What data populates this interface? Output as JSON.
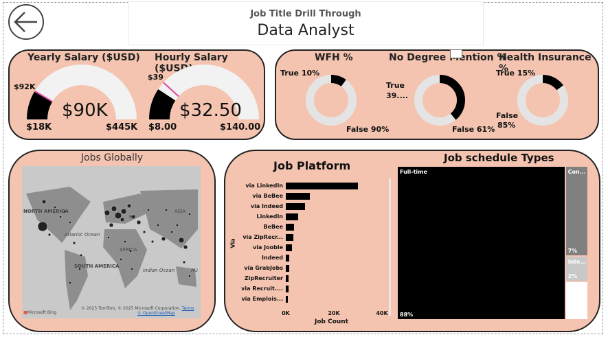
{
  "header": {
    "subtitle": "Job Title Drill Through",
    "title": "Data Analyst"
  },
  "gauges": [
    {
      "title": "Yearly Salary ($USD)",
      "value_label": "$90K",
      "min_label": "$18K",
      "max_label": "$445K",
      "target_label": "$92K",
      "min": 18,
      "max": 445,
      "value": 90,
      "target": 92
    },
    {
      "title": "Hourly Salary ($USD)",
      "value_label": "$32.50",
      "min_label": "$8.00",
      "max_label": "$140.00",
      "target_label": "$39",
      "min": 8,
      "max": 140,
      "value": 32.5,
      "target": 39
    }
  ],
  "donuts": [
    {
      "title": "WFH %",
      "true_label": "True 10%",
      "false_label": "False 90%",
      "true_pct": 10
    },
    {
      "title": "No Degree Mention %",
      "true_label": "True",
      "true_label2": "39....",
      "false_label": "False 61%",
      "true_pct": 39
    },
    {
      "title": "Health Insurance %",
      "true_label": "True 15%",
      "false_label": "False",
      "false_label2": "85%",
      "true_pct": 15
    }
  ],
  "map": {
    "title": "Jobs Globally",
    "labels": {
      "north_america": "NORTH AMERICA",
      "atlantic": "Atlantic Ocean",
      "south_america": "SOUTH AMERICA",
      "africa": "AFRICA",
      "asia": "ASIA",
      "indian": "Indian Ocean",
      "eu": "EU",
      "au": "AU"
    },
    "attribution": "© 2025 TomTom, © 2025 Microsoft Corporation,",
    "terms": "Terms",
    "osm": "© OpenStreetMap",
    "bing": "Microsoft Bing"
  },
  "chart_data": [
    {
      "type": "bar",
      "orientation": "horizontal",
      "title": "Job Platform",
      "xlabel": "Job Count",
      "ylabel": "Via",
      "categories": [
        "via LinkedIn",
        "via BeBee",
        "via Indeed",
        "LinkedIn",
        "BeBee",
        "via ZipRecr...",
        "via Jooble",
        "Indeed",
        "via GrabJobs",
        "ZipRecruiter",
        "via Recruit....",
        "via Emplois..."
      ],
      "values": [
        30000,
        10000,
        8000,
        5000,
        3500,
        3000,
        2500,
        1500,
        1500,
        1200,
        1100,
        900
      ],
      "xlim": [
        0,
        40000
      ],
      "xticks": [
        "0K",
        "20K",
        "40K"
      ]
    },
    {
      "type": "treemap",
      "title": "Job schedule Types",
      "items": [
        {
          "name": "Full-time",
          "pct_label": "88%",
          "pct": 88,
          "color": "#000000"
        },
        {
          "name": "Con...",
          "pct_label": "7%",
          "pct": 7,
          "color": "#808080"
        },
        {
          "name": "Inte...",
          "pct_label": "2%",
          "pct": 2,
          "color": "#c8c8c8"
        },
        {
          "name": "",
          "pct_label": "",
          "pct": 3,
          "color": "#ffffff"
        }
      ]
    }
  ],
  "colors": {
    "panel": "#f4c4b0",
    "gauge_fill": "#000000",
    "gauge_track": "#f2f2f2",
    "target": "#e040a0"
  }
}
